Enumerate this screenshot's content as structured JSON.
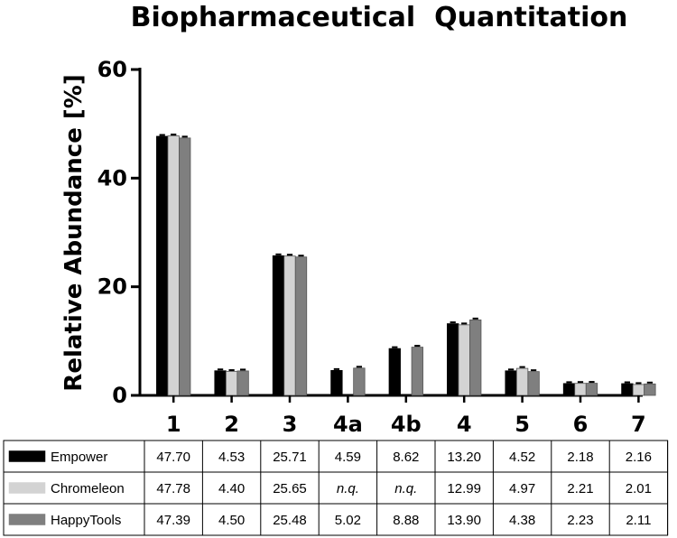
{
  "chart_data": {
    "type": "bar",
    "title": "Biopharmaceutical  Quantitation",
    "xlabel": "",
    "ylabel": "Relative Abundance [%]",
    "ylim": [
      0,
      60
    ],
    "yticks": [
      0,
      20,
      40,
      60
    ],
    "categories": [
      "1",
      "2",
      "3",
      "4a",
      "4b",
      "4",
      "5",
      "6",
      "7"
    ],
    "series": [
      {
        "name": "Empower",
        "color": "#000000",
        "values": [
          47.7,
          4.53,
          25.71,
          4.59,
          8.62,
          13.2,
          4.52,
          2.18,
          2.16
        ],
        "labels": [
          "47.70",
          "4.53",
          "25.71",
          "4.59",
          "8.62",
          "13.20",
          "4.52",
          "2.18",
          "2.16"
        ]
      },
      {
        "name": "Chromeleon",
        "color": "#d3d3d3",
        "values": [
          47.78,
          4.4,
          25.65,
          null,
          null,
          12.99,
          4.97,
          2.21,
          2.01
        ],
        "labels": [
          "47.78",
          "4.40",
          "25.65",
          "n.q.",
          "n.q.",
          "12.99",
          "4.97",
          "2.21",
          "2.01"
        ]
      },
      {
        "name": "HappyTools",
        "color": "#7f7f7f",
        "values": [
          47.39,
          4.5,
          25.48,
          5.02,
          8.88,
          13.9,
          4.38,
          2.23,
          2.11
        ],
        "labels": [
          "47.39",
          "4.50",
          "25.48",
          "5.02",
          "8.88",
          "13.90",
          "4.38",
          "2.23",
          "2.11"
        ]
      }
    ],
    "grid": false,
    "legend": "table-below"
  }
}
